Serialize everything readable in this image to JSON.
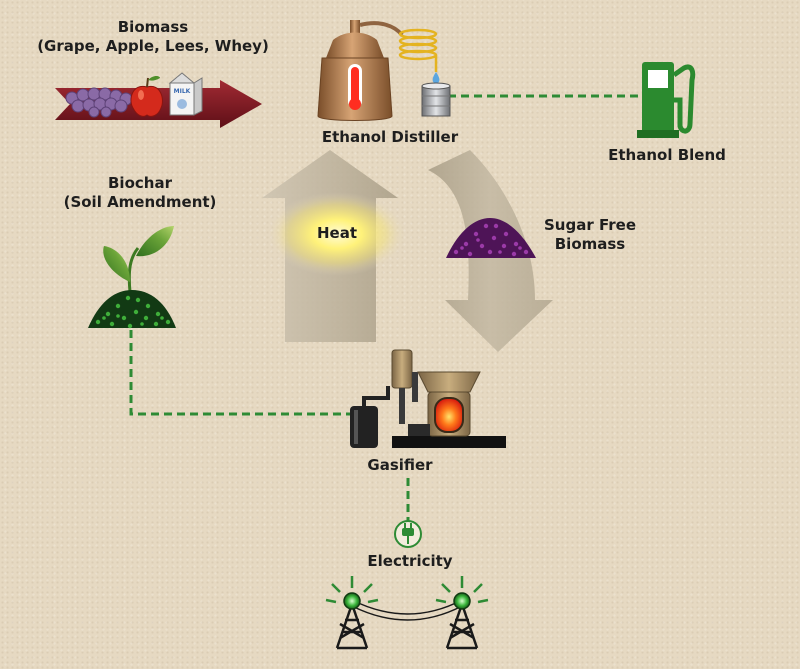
{
  "labels": {
    "biomass": "Biomass",
    "biomass_sub": "(Grape, Apple, Lees, Whey)",
    "distiller": "Ethanol Distiller",
    "ethanol_blend": "Ethanol Blend",
    "biochar": "Biochar",
    "biochar_sub": "(Soil Amendment)",
    "heat": "Heat",
    "sugar_free_1": "Sugar Free",
    "sugar_free_2": "Biomass",
    "gasifier": "Gasifier",
    "electricity": "Electricity",
    "milk_carton": "MILK"
  },
  "colors": {
    "background": "#e6d9c2",
    "red_arrow": "#7a1620",
    "green_dash": "#2e8b35",
    "pump_green": "#2b8a2f",
    "grape_purple": "#8a6aa6",
    "sugar_free_purple": "#6c1c78",
    "copper": "#b07a4a",
    "heat_glow": "#fff27a",
    "flame": "#ff3a1a"
  },
  "icons": [
    "grapes-icon",
    "apple-icon",
    "milk-carton-icon",
    "still-icon",
    "condenser-coil-icon",
    "drip-icon",
    "barrel-icon",
    "fuel-pump-icon",
    "plant-sprout-icon",
    "biochar-pile-icon",
    "purple-biomass-pile-icon",
    "gasifier-icon",
    "plug-icon",
    "power-tower-icon"
  ]
}
